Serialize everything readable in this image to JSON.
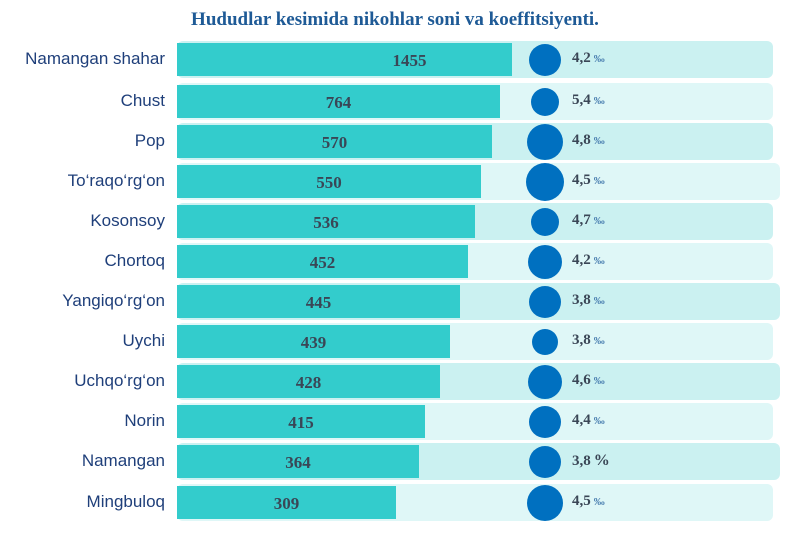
{
  "chart_data": {
    "type": "bar",
    "title": "Hududlar kesimida nikohlar soni va koeffitsiyenti.",
    "categories": [
      "Namangan shahar",
      "Chust",
      "Pop",
      "To‘raqo‘rg‘on",
      "Kosonsoy",
      "Chortoq",
      "Yangiqo‘rg‘on",
      "Uychi",
      "Uchqo‘rg‘on",
      "Norin",
      "Namangan",
      "Mingbuloq"
    ],
    "series": [
      {
        "name": "Nikohlar soni",
        "values": [
          1455,
          764,
          570,
          550,
          536,
          452,
          445,
          439,
          428,
          415,
          364,
          309
        ]
      },
      {
        "name": "Koeffitsiyent",
        "values": [
          "4,2",
          "5,4",
          "4,8",
          "4,5",
          "4,7",
          "4,2",
          "3,8",
          "3,8",
          "4,6",
          "4,4",
          "3,8",
          "4,5"
        ],
        "units": [
          "‰",
          "‰",
          "‰",
          "‰",
          "‰",
          "‰",
          "‰",
          "‰",
          "‰",
          "‰",
          "%",
          "‰"
        ]
      }
    ],
    "colors": {
      "bar": "#33cccc",
      "dot": "#0070c0",
      "row_a": "#cbf1f1",
      "row_b": "#dff7f7"
    }
  }
}
